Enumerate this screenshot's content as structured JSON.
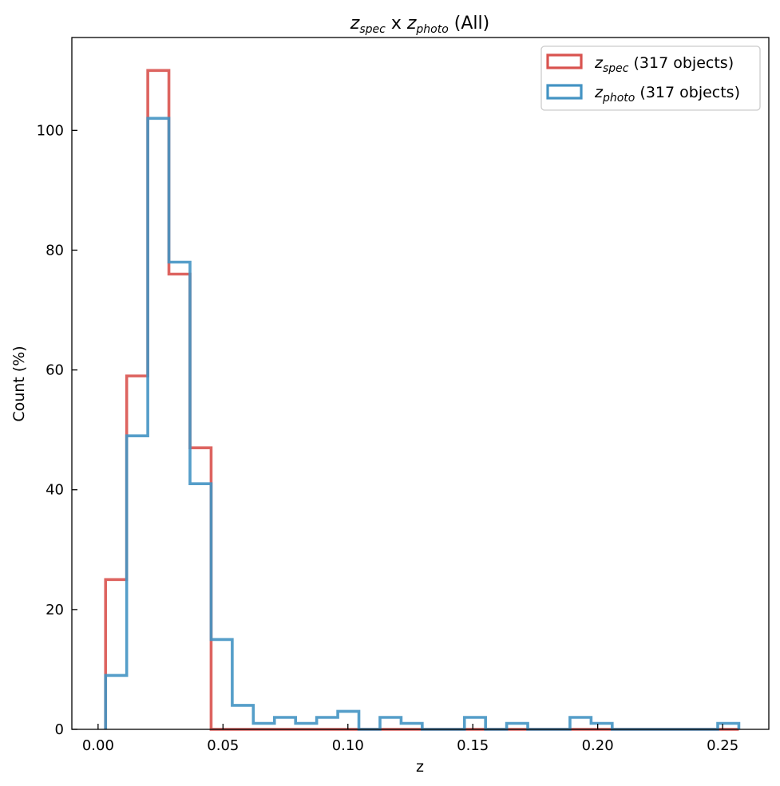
{
  "chart_data": {
    "type": "histogram",
    "title": {
      "var1_base": "z",
      "var1_sub": "spec",
      "connector": " x ",
      "var2_base": "z",
      "var2_sub": "photo",
      "suffix": " (All)"
    },
    "xlabel": "z",
    "ylabel": "Count (%)",
    "xlim": [
      -0.0105,
      0.2685
    ],
    "ylim": [
      0,
      115.5
    ],
    "xticks": [
      0.0,
      0.05,
      0.1,
      0.15,
      0.2,
      0.25
    ],
    "xtick_labels": [
      "0.00",
      "0.05",
      "0.10",
      "0.15",
      "0.20",
      "0.25"
    ],
    "yticks": [
      0,
      20,
      40,
      60,
      80,
      100
    ],
    "ytick_labels": [
      "0",
      "20",
      "40",
      "60",
      "80",
      "100"
    ],
    "bin_edges": [
      0.003,
      0.01145,
      0.0199,
      0.02835,
      0.0368,
      0.04525,
      0.0537,
      0.06215,
      0.0706,
      0.07905,
      0.0875,
      0.09595,
      0.1044,
      0.11285,
      0.1213,
      0.12975,
      0.1382,
      0.14665,
      0.1551,
      0.16355,
      0.172,
      0.18045,
      0.1889,
      0.19735,
      0.2058,
      0.21425,
      0.2227,
      0.23115,
      0.2396,
      0.24805,
      0.2565
    ],
    "series": [
      {
        "name": "z_spec",
        "legend_base": "z",
        "legend_sub": "spec",
        "legend_suffix": " (317 objects)",
        "color": "#d9534f",
        "values": [
          25,
          59,
          110,
          76,
          47,
          0,
          0,
          0,
          0,
          0,
          0,
          0,
          0,
          0,
          0,
          0,
          0,
          0,
          0,
          0,
          0,
          0,
          0,
          0,
          0,
          0,
          0,
          0,
          0,
          0
        ]
      },
      {
        "name": "z_photo",
        "legend_base": "z",
        "legend_sub": "photo",
        "legend_suffix": " (317 objects)",
        "color": "#4393c3",
        "values": [
          9,
          49,
          102,
          78,
          41,
          15,
          4,
          1,
          2,
          1,
          2,
          3,
          0,
          2,
          1,
          0,
          0,
          2,
          0,
          1,
          0,
          0,
          2,
          1,
          0,
          0,
          0,
          0,
          0,
          1
        ]
      }
    ],
    "legend_position": "upper-right",
    "grid": false
  }
}
